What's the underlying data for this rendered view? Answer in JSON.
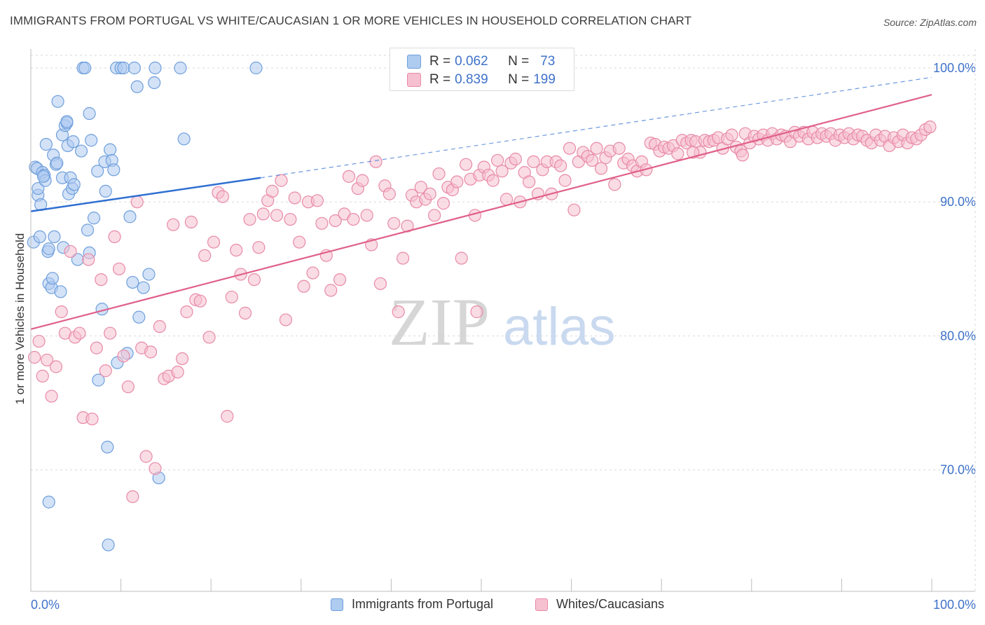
{
  "title": "IMMIGRANTS FROM PORTUGAL VS WHITE/CAUCASIAN 1 OR MORE VEHICLES IN HOUSEHOLD CORRELATION CHART",
  "source": "Source: ZipAtlas.com",
  "watermark": {
    "zip": "ZIP",
    "atlas": "atlas"
  },
  "stats": {
    "row1": {
      "r_label": "R =",
      "r_value": "0.062",
      "n_label": "N =",
      "n_value": "73"
    },
    "row2": {
      "r_label": "R =",
      "r_value": "0.839",
      "n_label": "N =",
      "n_value": "199"
    }
  },
  "colors": {
    "blue_fill": "#aecbf0",
    "blue_stroke": "#6f9fdc",
    "blue_line": "#2f6fd1",
    "pink_fill": "#f6c0d0",
    "pink_stroke": "#e88aa7",
    "pink_line": "#e0608a",
    "tick_label": "#3f72c9",
    "grid": "#d9d9d9"
  },
  "chart_data": {
    "type": "scatter",
    "title": "IMMIGRANTS FROM PORTUGAL VS WHITE/CAUCASIAN 1 OR MORE VEHICLES IN HOUSEHOLD CORRELATION CHART",
    "xlabel": "",
    "ylabel": "1 or more Vehicles in Household",
    "xlim": [
      0,
      100
    ],
    "ylim": [
      61,
      102
    ],
    "x_tick_labels": [
      "0.0%",
      "100.0%"
    ],
    "y_ticks": [
      70,
      80,
      90,
      100
    ],
    "y_tick_labels": [
      "70.0%",
      "80.0%",
      "90.0%",
      "100.0%"
    ],
    "grid": true,
    "legend_position": "bottom",
    "series": [
      {
        "name": "Immigrants from Portugal",
        "color": "#aecbf0",
        "trend": {
          "x0": 0,
          "y0": 89.3,
          "x1": 25.5,
          "y1": 91.8,
          "dash_to_x": 100,
          "dash_to_y": 99.3
        },
        "points": [
          [
            0.3,
            87.0
          ],
          [
            0.5,
            92.6
          ],
          [
            0.7,
            92.5
          ],
          [
            0.8,
            90.5
          ],
          [
            0.8,
            91.0
          ],
          [
            1.0,
            87.4
          ],
          [
            1.1,
            89.8
          ],
          [
            1.3,
            92.2
          ],
          [
            1.5,
            92.0
          ],
          [
            1.6,
            91.6
          ],
          [
            1.7,
            94.3
          ],
          [
            1.9,
            86.3
          ],
          [
            2.0,
            83.9
          ],
          [
            2.0,
            86.5
          ],
          [
            2.3,
            83.6
          ],
          [
            2.4,
            84.3
          ],
          [
            2.5,
            93.5
          ],
          [
            2.6,
            87.4
          ],
          [
            2.8,
            92.8
          ],
          [
            2.9,
            92.9
          ],
          [
            3.0,
            97.5
          ],
          [
            3.3,
            83.3
          ],
          [
            3.5,
            95.0
          ],
          [
            3.5,
            91.8
          ],
          [
            3.6,
            86.6
          ],
          [
            3.8,
            95.7
          ],
          [
            4.0,
            95.9
          ],
          [
            4.0,
            96.0
          ],
          [
            4.1,
            94.2
          ],
          [
            4.2,
            90.6
          ],
          [
            4.4,
            91.8
          ],
          [
            4.6,
            91.0
          ],
          [
            4.7,
            94.5
          ],
          [
            4.8,
            91.3
          ],
          [
            5.2,
            85.7
          ],
          [
            5.6,
            93.8
          ],
          [
            5.8,
            100.0
          ],
          [
            6.0,
            100.0
          ],
          [
            6.3,
            87.9
          ],
          [
            6.5,
            96.6
          ],
          [
            6.5,
            86.2
          ],
          [
            6.7,
            94.6
          ],
          [
            7.0,
            88.8
          ],
          [
            7.4,
            92.3
          ],
          [
            7.5,
            76.7
          ],
          [
            7.9,
            82.0
          ],
          [
            8.2,
            93.0
          ],
          [
            8.3,
            90.8
          ],
          [
            8.5,
            71.7
          ],
          [
            8.6,
            64.4
          ],
          [
            8.8,
            93.9
          ],
          [
            9.0,
            93.1
          ],
          [
            9.2,
            92.4
          ],
          [
            9.5,
            100.0
          ],
          [
            9.6,
            78.0
          ],
          [
            10.0,
            100.0
          ],
          [
            10.3,
            100.0
          ],
          [
            10.7,
            78.7
          ],
          [
            11.0,
            88.9
          ],
          [
            11.3,
            84.0
          ],
          [
            11.5,
            100.0
          ],
          [
            11.8,
            98.6
          ],
          [
            12.0,
            81.4
          ],
          [
            12.5,
            83.6
          ],
          [
            13.1,
            84.6
          ],
          [
            13.7,
            98.9
          ],
          [
            13.8,
            100.0
          ],
          [
            14.2,
            69.4
          ],
          [
            16.6,
            100.0
          ],
          [
            17.0,
            94.7
          ],
          [
            25.0,
            100.0
          ],
          [
            1.4,
            91.9
          ],
          [
            2.0,
            67.6
          ]
        ]
      },
      {
        "name": "Whites/Caucasians",
        "color": "#f6c0d0",
        "trend": {
          "x0": 0,
          "y0": 80.5,
          "x1": 100,
          "y1": 98.0
        },
        "points": [
          [
            0.4,
            78.4
          ],
          [
            0.9,
            79.6
          ],
          [
            1.3,
            77.0
          ],
          [
            1.8,
            78.2
          ],
          [
            2.3,
            75.5
          ],
          [
            2.8,
            77.7
          ],
          [
            3.4,
            81.8
          ],
          [
            3.8,
            80.2
          ],
          [
            4.4,
            86.3
          ],
          [
            4.9,
            79.9
          ],
          [
            5.4,
            80.2
          ],
          [
            5.8,
            73.9
          ],
          [
            6.4,
            85.7
          ],
          [
            6.8,
            73.8
          ],
          [
            7.3,
            79.1
          ],
          [
            7.8,
            84.2
          ],
          [
            8.3,
            77.4
          ],
          [
            8.8,
            80.2
          ],
          [
            9.3,
            87.4
          ],
          [
            9.8,
            85.0
          ],
          [
            10.3,
            78.5
          ],
          [
            10.8,
            76.2
          ],
          [
            11.3,
            68.0
          ],
          [
            11.8,
            90.0
          ],
          [
            12.3,
            79.1
          ],
          [
            12.8,
            71.0
          ],
          [
            13.3,
            78.8
          ],
          [
            13.8,
            70.1
          ],
          [
            14.3,
            80.7
          ],
          [
            14.8,
            76.8
          ],
          [
            15.3,
            77.0
          ],
          [
            15.8,
            88.3
          ],
          [
            16.3,
            77.3
          ],
          [
            16.8,
            78.3
          ],
          [
            17.3,
            81.8
          ],
          [
            17.8,
            88.5
          ],
          [
            18.3,
            82.7
          ],
          [
            18.8,
            82.6
          ],
          [
            19.3,
            86.0
          ],
          [
            19.8,
            79.9
          ],
          [
            20.3,
            87.0
          ],
          [
            20.8,
            90.7
          ],
          [
            21.3,
            90.4
          ],
          [
            21.8,
            74.0
          ],
          [
            22.3,
            82.9
          ],
          [
            22.8,
            86.4
          ],
          [
            23.3,
            84.6
          ],
          [
            23.8,
            81.7
          ],
          [
            24.3,
            88.7
          ],
          [
            24.8,
            84.2
          ],
          [
            25.3,
            86.6
          ],
          [
            25.8,
            89.1
          ],
          [
            26.3,
            90.1
          ],
          [
            26.8,
            90.8
          ],
          [
            27.3,
            89.0
          ],
          [
            27.8,
            91.6
          ],
          [
            28.3,
            81.2
          ],
          [
            28.8,
            88.7
          ],
          [
            29.3,
            90.3
          ],
          [
            29.8,
            87.0
          ],
          [
            30.3,
            83.7
          ],
          [
            30.8,
            90.0
          ],
          [
            31.3,
            84.7
          ],
          [
            31.8,
            90.1
          ],
          [
            32.3,
            88.4
          ],
          [
            32.8,
            86.0
          ],
          [
            33.3,
            83.4
          ],
          [
            33.8,
            88.6
          ],
          [
            34.3,
            84.2
          ],
          [
            34.8,
            89.1
          ],
          [
            35.3,
            91.9
          ],
          [
            35.8,
            88.7
          ],
          [
            36.3,
            91.0
          ],
          [
            36.8,
            91.6
          ],
          [
            37.3,
            89.0
          ],
          [
            37.8,
            86.8
          ],
          [
            38.3,
            93.0
          ],
          [
            38.8,
            83.9
          ],
          [
            39.3,
            91.2
          ],
          [
            39.8,
            90.6
          ],
          [
            40.3,
            88.4
          ],
          [
            40.8,
            81.8
          ],
          [
            41.3,
            85.8
          ],
          [
            41.8,
            88.2
          ],
          [
            42.3,
            90.5
          ],
          [
            42.8,
            90.0
          ],
          [
            43.3,
            91.1
          ],
          [
            43.8,
            90.2
          ],
          [
            44.3,
            90.6
          ],
          [
            44.8,
            89.0
          ],
          [
            45.3,
            92.1
          ],
          [
            45.8,
            89.9
          ],
          [
            46.3,
            91.1
          ],
          [
            46.8,
            90.9
          ],
          [
            47.3,
            91.5
          ],
          [
            47.8,
            85.8
          ],
          [
            48.3,
            92.8
          ],
          [
            48.8,
            91.7
          ],
          [
            49.3,
            89.0
          ],
          [
            49.8,
            92.0
          ],
          [
            50.3,
            92.6
          ],
          [
            50.8,
            92.0
          ],
          [
            51.3,
            91.6
          ],
          [
            51.8,
            93.1
          ],
          [
            52.3,
            92.3
          ],
          [
            52.8,
            90.2
          ],
          [
            53.3,
            92.9
          ],
          [
            53.8,
            93.2
          ],
          [
            54.3,
            90.0
          ],
          [
            54.8,
            92.2
          ],
          [
            55.3,
            91.5
          ],
          [
            55.8,
            93.0
          ],
          [
            56.3,
            90.6
          ],
          [
            56.8,
            92.4
          ],
          [
            57.3,
            93.0
          ],
          [
            57.8,
            90.6
          ],
          [
            58.3,
            93.0
          ],
          [
            58.8,
            92.7
          ],
          [
            59.3,
            91.6
          ],
          [
            59.8,
            94.0
          ],
          [
            60.3,
            89.4
          ],
          [
            60.8,
            93.0
          ],
          [
            61.3,
            93.7
          ],
          [
            61.8,
            93.4
          ],
          [
            62.3,
            93.1
          ],
          [
            62.8,
            94.0
          ],
          [
            63.3,
            92.5
          ],
          [
            63.8,
            93.3
          ],
          [
            64.3,
            93.8
          ],
          [
            64.8,
            91.3
          ],
          [
            65.3,
            94.0
          ],
          [
            65.8,
            92.9
          ],
          [
            66.3,
            93.2
          ],
          [
            66.8,
            92.7
          ],
          [
            67.3,
            92.3
          ],
          [
            67.8,
            93.0
          ],
          [
            68.3,
            92.4
          ],
          [
            68.8,
            94.4
          ],
          [
            69.3,
            94.3
          ],
          [
            69.8,
            93.8
          ],
          [
            70.3,
            94.1
          ],
          [
            70.8,
            94.0
          ],
          [
            71.3,
            94.2
          ],
          [
            71.8,
            93.6
          ],
          [
            72.3,
            94.6
          ],
          [
            72.8,
            94.4
          ],
          [
            73.3,
            94.6
          ],
          [
            73.8,
            94.5
          ],
          [
            74.3,
            93.7
          ],
          [
            74.8,
            94.6
          ],
          [
            75.3,
            94.5
          ],
          [
            75.8,
            94.6
          ],
          [
            76.3,
            94.8
          ],
          [
            76.8,
            94.0
          ],
          [
            77.3,
            94.7
          ],
          [
            77.8,
            95.0
          ],
          [
            78.3,
            94.1
          ],
          [
            78.8,
            93.8
          ],
          [
            79.3,
            95.1
          ],
          [
            79.8,
            94.4
          ],
          [
            80.3,
            94.9
          ],
          [
            80.8,
            94.7
          ],
          [
            81.3,
            95.0
          ],
          [
            81.8,
            94.6
          ],
          [
            82.3,
            95.1
          ],
          [
            82.8,
            94.7
          ],
          [
            83.3,
            95.0
          ],
          [
            83.8,
            94.9
          ],
          [
            84.3,
            94.5
          ],
          [
            84.8,
            95.2
          ],
          [
            85.3,
            94.9
          ],
          [
            85.8,
            95.2
          ],
          [
            86.3,
            94.7
          ],
          [
            86.8,
            95.2
          ],
          [
            87.3,
            94.8
          ],
          [
            87.8,
            95.1
          ],
          [
            88.3,
            94.9
          ],
          [
            88.8,
            95.1
          ],
          [
            89.3,
            94.6
          ],
          [
            89.8,
            95.0
          ],
          [
            90.3,
            94.8
          ],
          [
            90.8,
            95.1
          ],
          [
            91.3,
            94.7
          ],
          [
            91.8,
            95.0
          ],
          [
            92.3,
            94.9
          ],
          [
            92.8,
            94.6
          ],
          [
            93.3,
            94.4
          ],
          [
            93.8,
            95.0
          ],
          [
            94.3,
            94.6
          ],
          [
            94.8,
            94.9
          ],
          [
            95.3,
            94.2
          ],
          [
            95.8,
            94.8
          ],
          [
            96.3,
            94.5
          ],
          [
            96.8,
            95.0
          ],
          [
            97.3,
            94.4
          ],
          [
            97.8,
            94.8
          ],
          [
            98.3,
            94.7
          ],
          [
            98.8,
            95.0
          ],
          [
            99.3,
            95.4
          ],
          [
            99.8,
            95.6
          ],
          [
            49.5,
            81.8
          ],
          [
            73.5,
            93.7
          ],
          [
            79.0,
            93.5
          ]
        ]
      }
    ]
  },
  "legend": {
    "item1": "Immigrants from Portugal",
    "item2": "Whites/Caucasians"
  },
  "axis": {
    "ylabel": "1 or more Vehicles in Household",
    "x_left": "0.0%",
    "x_right": "100.0%"
  }
}
